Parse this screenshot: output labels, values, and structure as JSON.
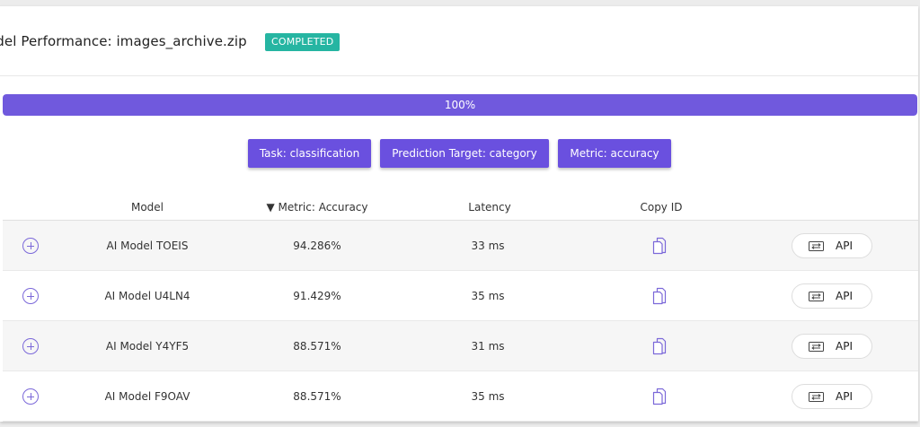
{
  "header": {
    "title": "odel Performance: images_archive.zip",
    "status": "COMPLETED",
    "status_color": "#26b5a2"
  },
  "progress": {
    "label": "100%",
    "value": 100,
    "color": "#7059dd"
  },
  "tags": [
    {
      "label": "Task: classification"
    },
    {
      "label": "Prediction Target: category"
    },
    {
      "label": "Metric: accuracy"
    }
  ],
  "table": {
    "columns": {
      "model": "Model",
      "metric": "▼ Metric: Accuracy",
      "latency": "Latency",
      "copy_id": "Copy ID"
    },
    "rows": [
      {
        "model": "AI Model TOEIS",
        "accuracy": "94.286%",
        "latency": "33 ms",
        "api": "API"
      },
      {
        "model": "AI Model U4LN4",
        "accuracy": "91.429%",
        "latency": "35 ms",
        "api": "API"
      },
      {
        "model": "AI Model Y4YF5",
        "accuracy": "88.571%",
        "latency": "31 ms",
        "api": "API"
      },
      {
        "model": "AI Model F9OAV",
        "accuracy": "88.571%",
        "latency": "35 ms",
        "api": "API"
      }
    ]
  },
  "icons": {
    "expand": "plus-circle-icon",
    "copy": "copy-icon",
    "api": "swap-arrows-icon"
  },
  "accent_color": "#6a50df"
}
